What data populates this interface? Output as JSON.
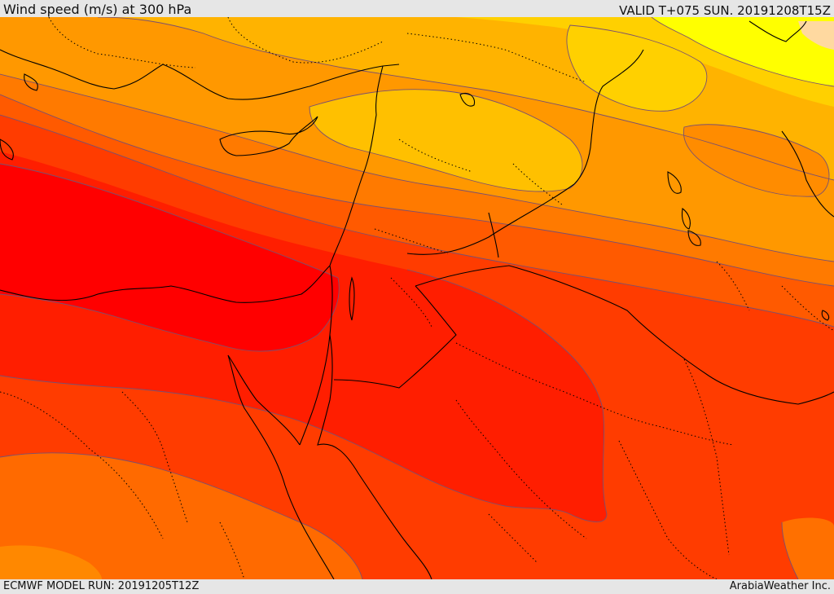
{
  "header": {
    "title": "Wind speed (m/s) at 300 hPa",
    "valid_time": "VALID T+075 SUN. 20191208T15Z"
  },
  "footer": {
    "model_run": "ECMWF MODEL RUN: 20191205T12Z",
    "credit": "ArabiaWeather Inc."
  },
  "map": {
    "field": "wind speed 300 hPa",
    "palette": {
      "band_pale": "#ffd9a0",
      "band_yellow": "#ffff00",
      "band_gold": "#ffd000",
      "band_amber": "#ffb300",
      "band_orange_light": "#ff9800",
      "band_orange": "#ff7a00",
      "band_orange_dark": "#ff5a00",
      "band_red_orange": "#ff3c00",
      "band_red": "#ff1e00",
      "band_core": "#ff0000",
      "contour_line": "#7a5070",
      "coastline": "#000000",
      "border_dotted": "#000000"
    }
  }
}
